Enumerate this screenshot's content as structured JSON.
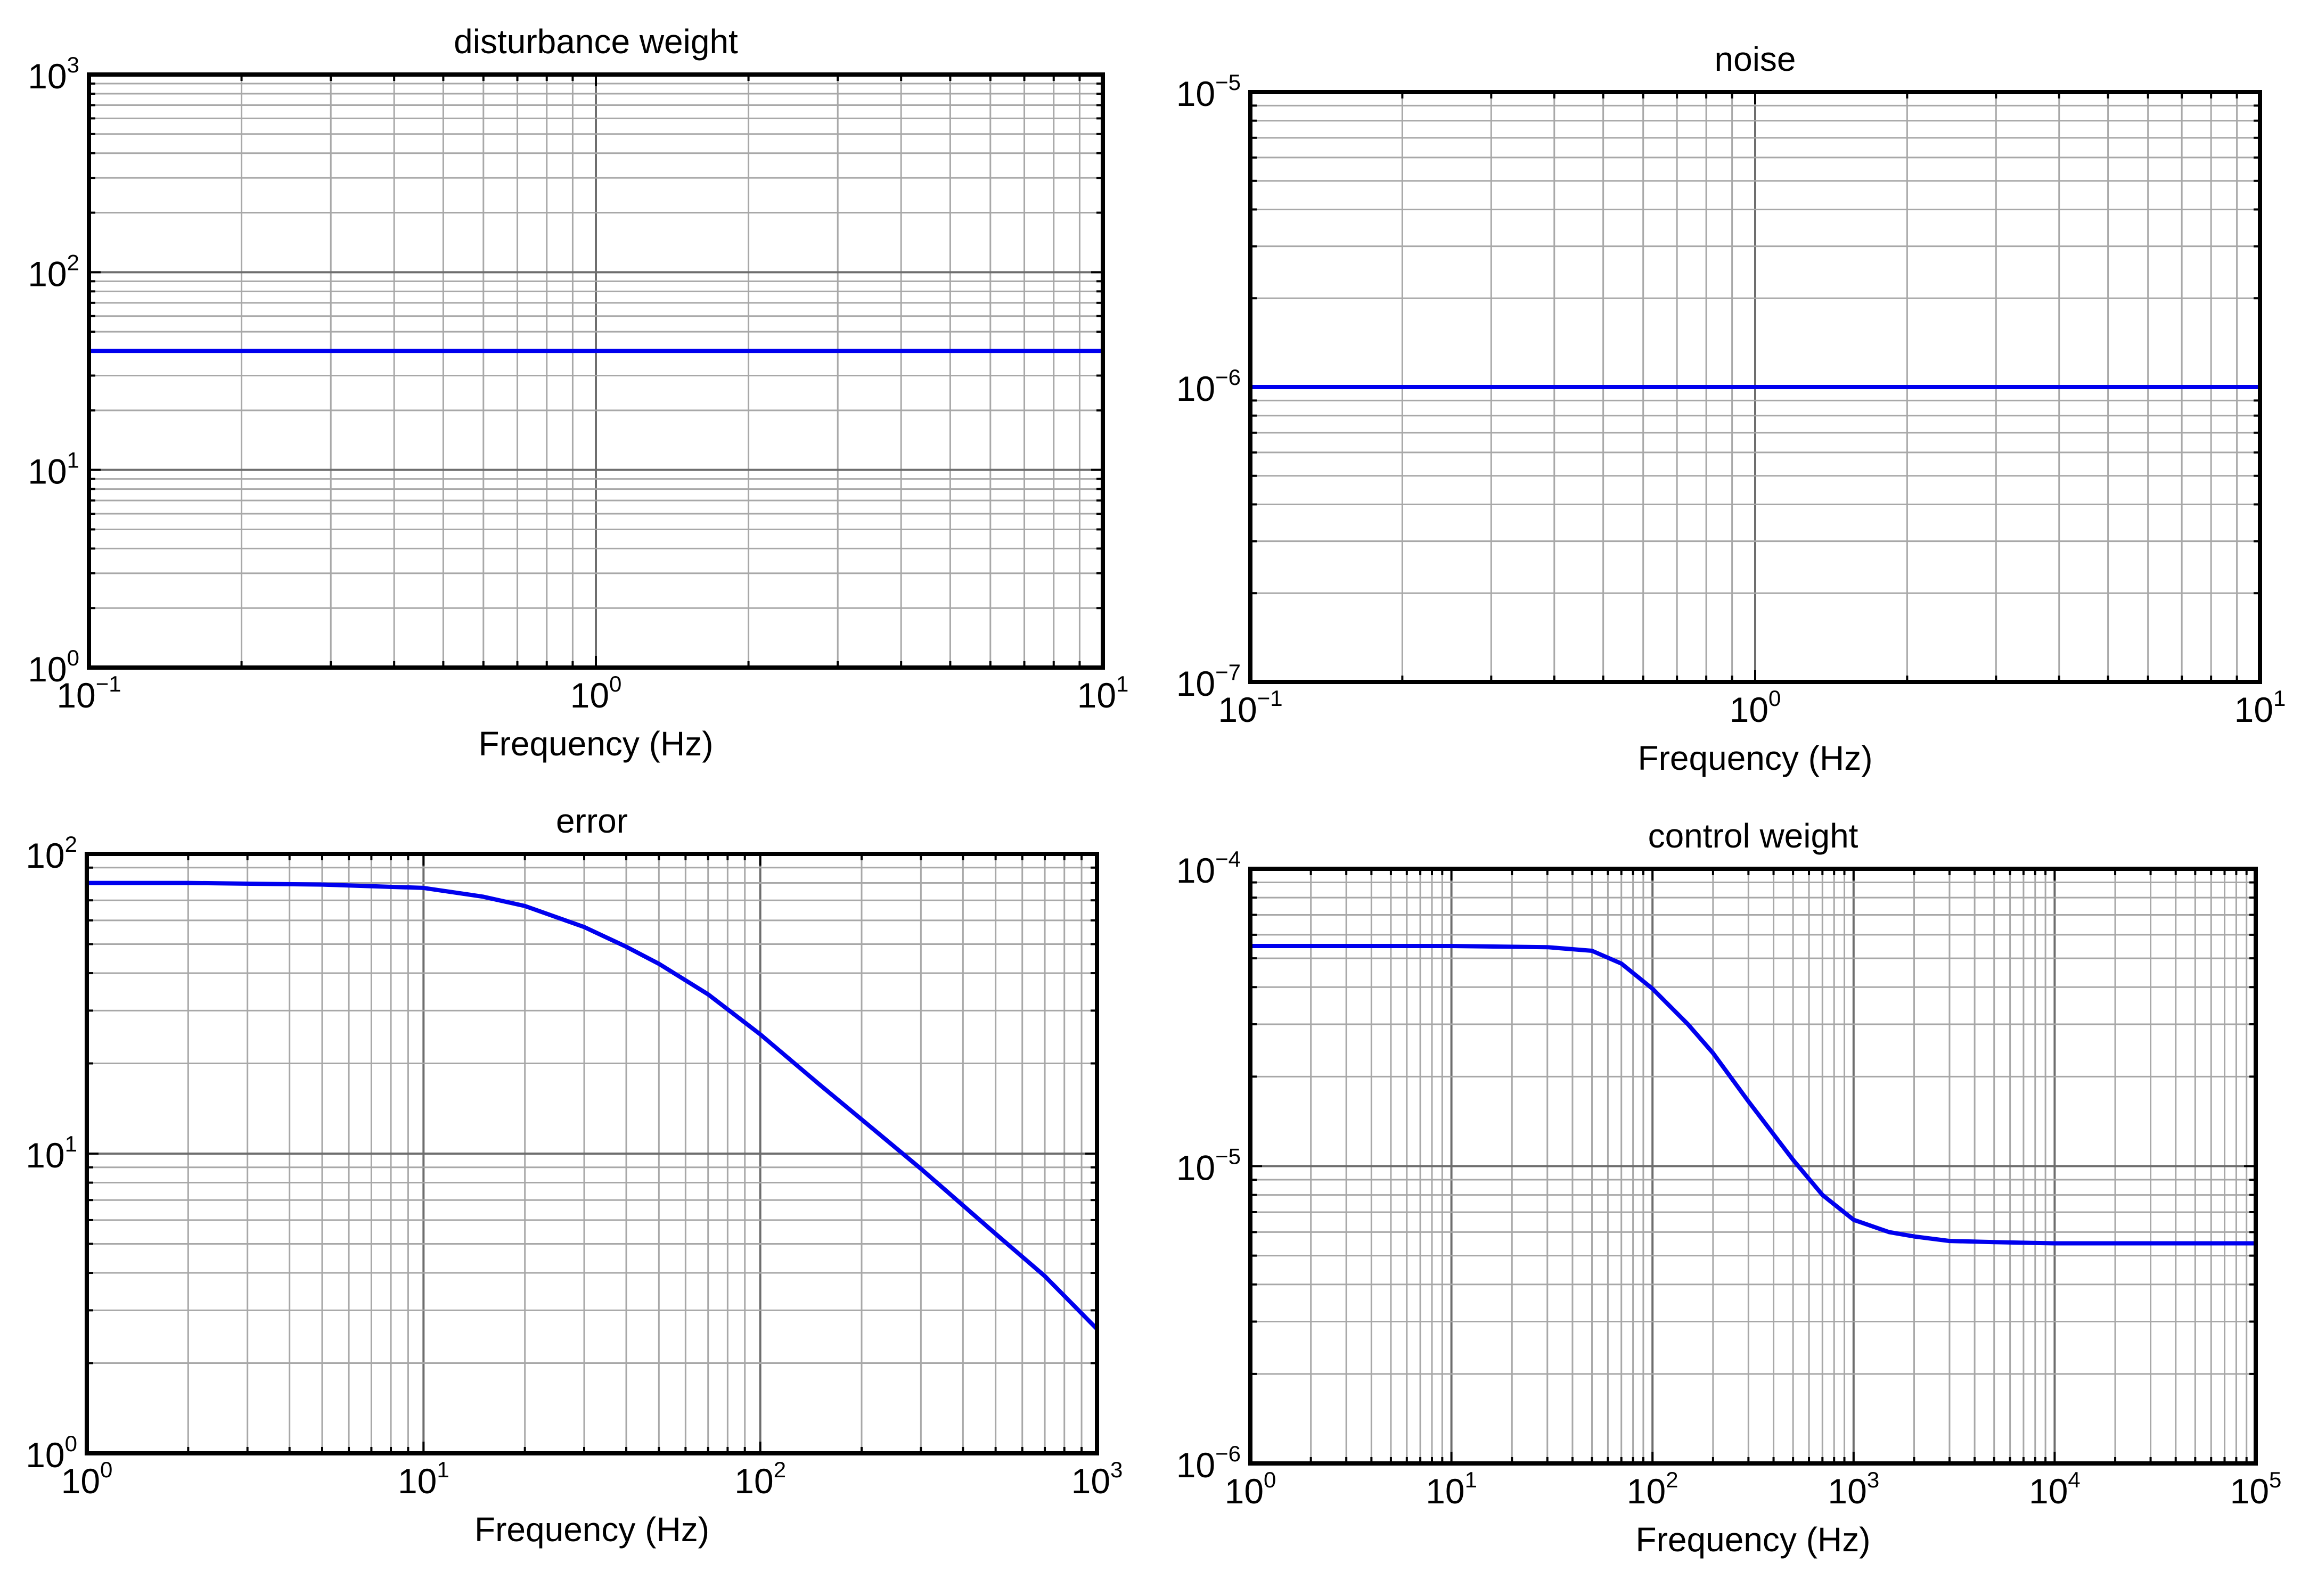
{
  "chart_data": [
    {
      "type": "line",
      "title": "disturbance weight",
      "xlabel": "Frequency (Hz)",
      "ylabel": "",
      "xscale": "log",
      "yscale": "log",
      "xlim": [
        0.1,
        10
      ],
      "ylim": [
        1,
        1000
      ],
      "grid": true,
      "x_ticks": [
        {
          "base": "10",
          "exp": "−1"
        },
        {
          "base": "10",
          "exp": "0"
        },
        {
          "base": "10",
          "exp": "1"
        }
      ],
      "y_ticks": [
        {
          "base": "10",
          "exp": "0"
        },
        {
          "base": "10",
          "exp": "1"
        },
        {
          "base": "10",
          "exp": "2"
        },
        {
          "base": "10",
          "exp": "3"
        }
      ],
      "series": [
        {
          "name": "disturbance weight",
          "color": "#0000ee",
          "x": [
            0.1,
            1,
            10
          ],
          "y": [
            40,
            40,
            40
          ]
        }
      ]
    },
    {
      "type": "line",
      "title": "noise",
      "xlabel": "Frequency (Hz)",
      "ylabel": "",
      "xscale": "log",
      "yscale": "log",
      "xlim": [
        0.1,
        10
      ],
      "ylim": [
        1e-07,
        1e-05
      ],
      "grid": true,
      "x_ticks": [
        {
          "base": "10",
          "exp": "−1"
        },
        {
          "base": "10",
          "exp": "0"
        },
        {
          "base": "10",
          "exp": "1"
        }
      ],
      "y_ticks": [
        {
          "base": "10",
          "exp": "−7"
        },
        {
          "base": "10",
          "exp": "−6"
        },
        {
          "base": "10",
          "exp": "−5"
        }
      ],
      "series": [
        {
          "name": "noise",
          "color": "#0000ee",
          "x": [
            0.1,
            1,
            10
          ],
          "y": [
            1e-06,
            1e-06,
            1e-06
          ]
        }
      ]
    },
    {
      "type": "line",
      "title": "error",
      "xlabel": "Frequency (Hz)",
      "ylabel": "",
      "xscale": "log",
      "yscale": "log",
      "xlim": [
        1,
        1000
      ],
      "ylim": [
        1,
        100
      ],
      "grid": true,
      "x_ticks": [
        {
          "base": "10",
          "exp": "0"
        },
        {
          "base": "10",
          "exp": "1"
        },
        {
          "base": "10",
          "exp": "2"
        },
        {
          "base": "10",
          "exp": "3"
        }
      ],
      "y_ticks": [
        {
          "base": "10",
          "exp": "0"
        },
        {
          "base": "10",
          "exp": "1"
        },
        {
          "base": "10",
          "exp": "2"
        }
      ],
      "series": [
        {
          "name": "error",
          "color": "#0000ee",
          "x": [
            1,
            2,
            5,
            10,
            15,
            20,
            30,
            40,
            50,
            70,
            100,
            150,
            200,
            300,
            500,
            700,
            1000
          ],
          "y": [
            80,
            80,
            79,
            77,
            72,
            67,
            57,
            49,
            43,
            34,
            25,
            17,
            13,
            8.9,
            5.4,
            3.9,
            2.6
          ]
        }
      ]
    },
    {
      "type": "line",
      "title": "control weight",
      "xlabel": "Frequency (Hz)",
      "ylabel": "",
      "xscale": "log",
      "yscale": "log",
      "xlim": [
        1,
        100000
      ],
      "ylim": [
        1e-06,
        0.0001
      ],
      "grid": true,
      "x_ticks": [
        {
          "base": "10",
          "exp": "0"
        },
        {
          "base": "10",
          "exp": "1"
        },
        {
          "base": "10",
          "exp": "2"
        },
        {
          "base": "10",
          "exp": "3"
        },
        {
          "base": "10",
          "exp": "4"
        },
        {
          "base": "10",
          "exp": "5"
        }
      ],
      "y_ticks": [
        {
          "base": "10",
          "exp": "−6"
        },
        {
          "base": "10",
          "exp": "−5"
        },
        {
          "base": "10",
          "exp": "−4"
        }
      ],
      "series": [
        {
          "name": "control weight",
          "color": "#0000ee",
          "x": [
            1,
            10,
            30,
            50,
            70,
            100,
            150,
            200,
            300,
            500,
            700,
            1000,
            1500,
            2000,
            3000,
            5000,
            10000,
            30000,
            100000
          ],
          "y": [
            5.5e-05,
            5.5e-05,
            5.45e-05,
            5.3e-05,
            4.8e-05,
            3.95e-05,
            3e-05,
            2.4e-05,
            1.65e-05,
            1.05e-05,
            8e-06,
            6.6e-06,
            6e-06,
            5.8e-06,
            5.6e-06,
            5.55e-06,
            5.5e-06,
            5.5e-06,
            5.5e-06
          ]
        }
      ]
    }
  ]
}
